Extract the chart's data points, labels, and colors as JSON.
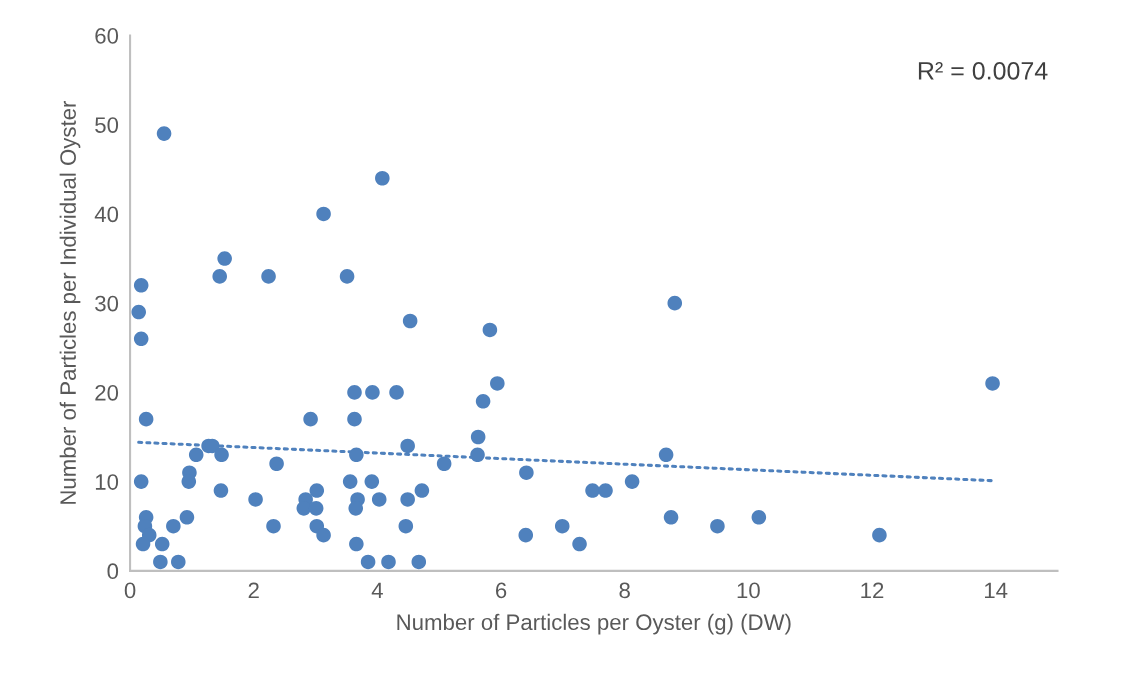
{
  "chart_data": {
    "type": "scatter",
    "xlabel": "Number of Particles per Oyster (g) (DW)",
    "ylabel": "Number of Particles per Individual Oyster",
    "xlim": [
      0,
      15
    ],
    "xticks": [
      0,
      2,
      4,
      6,
      8,
      10,
      12,
      14
    ],
    "ylim": [
      0,
      60
    ],
    "yticks": [
      0,
      10,
      20,
      30,
      40,
      50,
      60
    ],
    "grid": false,
    "marker": "circle",
    "annotations": [
      "R² = 0.0074"
    ],
    "series": [
      {
        "color": "#4f81bd",
        "x": [
          0.14,
          0.18,
          0.18,
          0.55,
          4.08,
          3.13,
          1.53,
          1.45,
          2.24,
          3.51,
          4.53,
          5.82,
          5.94,
          5.71,
          0.26,
          1.27,
          1.33,
          1.07,
          1.48,
          2.37,
          0.96,
          0.95,
          0.18,
          1.47,
          2.03,
          0.26,
          0.92,
          0.24,
          0.7,
          2.32,
          0.31,
          0.21,
          0.52,
          0.49,
          0.78,
          2.92,
          3.63,
          3.63,
          3.92,
          4.31,
          4.49,
          3.66,
          3.56,
          3.91,
          2.84,
          3.02,
          2.81,
          3.01,
          3.68,
          3.65,
          4.03,
          4.49,
          4.72,
          3.02,
          3.13,
          4.46,
          3.66,
          3.85,
          4.18,
          4.67,
          5.08,
          5.63,
          5.62,
          6.41,
          7.48,
          7.69,
          8.12,
          6.4,
          6.99,
          7.27,
          8.67,
          8.81,
          13.95,
          8.75,
          9.5,
          10.17,
          12.12
        ],
        "values": [
          29,
          32,
          26,
          49,
          44,
          40,
          35,
          33,
          33,
          33,
          28,
          27,
          21,
          19,
          17,
          14,
          14,
          13,
          13,
          12,
          11,
          10,
          10,
          9,
          8,
          6,
          6,
          5,
          5,
          5,
          4,
          3,
          3,
          1,
          1,
          17,
          17,
          20,
          20,
          20,
          14,
          13,
          10,
          10,
          8,
          9,
          7,
          7,
          8,
          7,
          8,
          8,
          9,
          5,
          4,
          5,
          3,
          1,
          1,
          1,
          12,
          15,
          13,
          11,
          9,
          9,
          10,
          4,
          5,
          3,
          13,
          30,
          21,
          6,
          5,
          6,
          4
        ]
      },
      {
        "type": "line",
        "color": "#4f81bd",
        "line_style": "dotted",
        "marker": "none",
        "x": [
          0.14,
          13.95
        ],
        "values": [
          14.4,
          10.1
        ]
      }
    ]
  }
}
